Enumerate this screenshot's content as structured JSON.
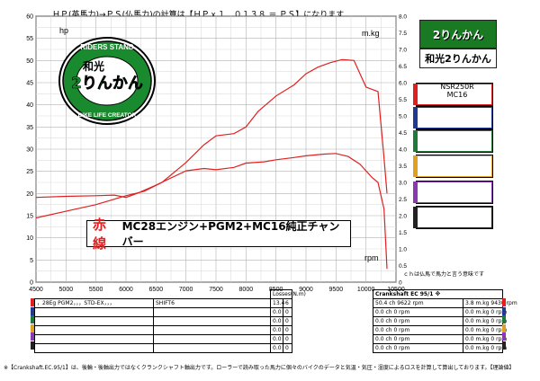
{
  "header": {
    "caption": "ＨＰ(英馬力)→ＰＳ(仏馬力)の計算は【ＨＰｘ１．０１３８ ＝ ＰＳ】になります"
  },
  "brand": {
    "logo_small": "2りんかん",
    "name": "和光2りんかん",
    "logo_top": "RIDERS STAND",
    "logo_mid": "和光",
    "logo_main": "2りんかん",
    "logo_bottom": "BIKE LIFE CREATOR",
    "model_line1": "NSR250R",
    "model_line2": "MC16"
  },
  "annotation": {
    "prefix": "赤線",
    "text": "MC28エンジン+PGM2+MC16純正チャンバー"
  },
  "note_hp": "ｃｈは仏馬で馬力と言う意味です",
  "footnote": "※【Crankshaft.EC.95/1】は、後輪・後軸出力ではなくクランクシャフト軸出力です。ローラーで読み取った馬力に個々のバイクのデータと気温・気圧・湿度によるロスを計算して算出しております。【理論値】",
  "table": {
    "header_losses": "Losses(N.m)",
    "header_crank": "Crankshaft EC 95/1 ※",
    "rows": [
      {
        "desc": "，28Eg PGM2，，，STD-EX，，，",
        "shift": "SHIFT6",
        "l1": "13.4",
        "l2": "6",
        "power": "50.4 ch 9622 rpm",
        "torque": "3.8 m.kg 9430 rpm",
        "color": "#e02020"
      },
      {
        "desc": "",
        "shift": "",
        "l1": "0.0",
        "l2": "0",
        "power": "0.0 ch 0 rpm",
        "torque": "0.0 m.kg 0 rpm",
        "color": "#1f3a93"
      },
      {
        "desc": "",
        "shift": "",
        "l1": "0.0",
        "l2": "0",
        "power": "0.0 ch 0 rpm",
        "torque": "0.0 m.kg 0 rpm",
        "color": "#1f7a3a"
      },
      {
        "desc": "",
        "shift": "",
        "l1": "0.0",
        "l2": "0",
        "power": "0.0 ch 0 rpm",
        "torque": "0.0 m.kg 0 rpm",
        "color": "#e0a020"
      },
      {
        "desc": "",
        "shift": "",
        "l1": "0.0",
        "l2": "0",
        "power": "0.0 ch 0 rpm",
        "torque": "0.0 m.kg 0 rpm",
        "color": "#8a3ab0"
      },
      {
        "desc": "",
        "shift": "",
        "l1": "0.0",
        "l2": "0",
        "power": "0.0 ch 0 rpm",
        "torque": "0.0 m.kg 0 rpm",
        "color": "#222222"
      }
    ]
  },
  "legend_colors": [
    "#e02020",
    "#1f3a93",
    "#1f7a3a",
    "#e0a020",
    "#8a3ab0",
    "#222222"
  ],
  "chart_data": {
    "type": "line",
    "xlabel": "rpm",
    "ylabel_left": "hp",
    "ylabel_right": "m.kg",
    "xlim": [
      4500,
      10500
    ],
    "ylim_left": [
      0,
      60
    ],
    "ylim_right": [
      0,
      8
    ],
    "x_ticks": [
      4500,
      5000,
      5500,
      6000,
      6500,
      7000,
      7500,
      8000,
      8500,
      9000,
      9500,
      10000,
      10500
    ],
    "y_ticks_left": [
      0,
      5,
      10,
      15,
      20,
      25,
      30,
      35,
      40,
      45,
      50,
      55,
      60
    ],
    "y_ticks_right": [
      "0",
      "0.5",
      "1.0",
      "1.5",
      "2.0",
      "2.5",
      "3.0",
      "3.5",
      "4.0",
      "4.5",
      "5.0",
      "5.5",
      "6.0",
      "6.5",
      "7.0",
      "7.5",
      "8.0"
    ],
    "grid": true,
    "series": [
      {
        "axis": "left",
        "color": "#e02020",
        "x": [
          4500,
          5000,
          5500,
          6000,
          6300,
          6600,
          7000,
          7300,
          7500,
          7800,
          8000,
          8200,
          8500,
          8800,
          9000,
          9200,
          9400,
          9600,
          9800,
          9900,
          10000,
          10100,
          10200,
          10300,
          10350
        ],
        "y": [
          14.5,
          16.0,
          17.5,
          19.5,
          20.5,
          22.5,
          27.0,
          31.0,
          33.0,
          33.5,
          35.0,
          38.5,
          42.0,
          44.5,
          47.0,
          48.5,
          49.5,
          50.2,
          50.0,
          47.0,
          44.0,
          43.5,
          43.0,
          28.0,
          20.0
        ]
      },
      {
        "axis": "right",
        "color": "#e02020",
        "x": [
          4500,
          5000,
          5500,
          5800,
          6000,
          6200,
          6500,
          7000,
          7300,
          7500,
          7800,
          8000,
          8300,
          8500,
          8800,
          9000,
          9300,
          9500,
          9700,
          9900,
          10000,
          10100,
          10200,
          10300,
          10350
        ],
        "y": [
          2.55,
          2.58,
          2.6,
          2.62,
          2.55,
          2.68,
          2.92,
          3.35,
          3.42,
          3.38,
          3.45,
          3.58,
          3.62,
          3.68,
          3.75,
          3.8,
          3.85,
          3.87,
          3.78,
          3.55,
          3.35,
          3.15,
          3.0,
          2.2,
          0.4
        ]
      }
    ]
  }
}
